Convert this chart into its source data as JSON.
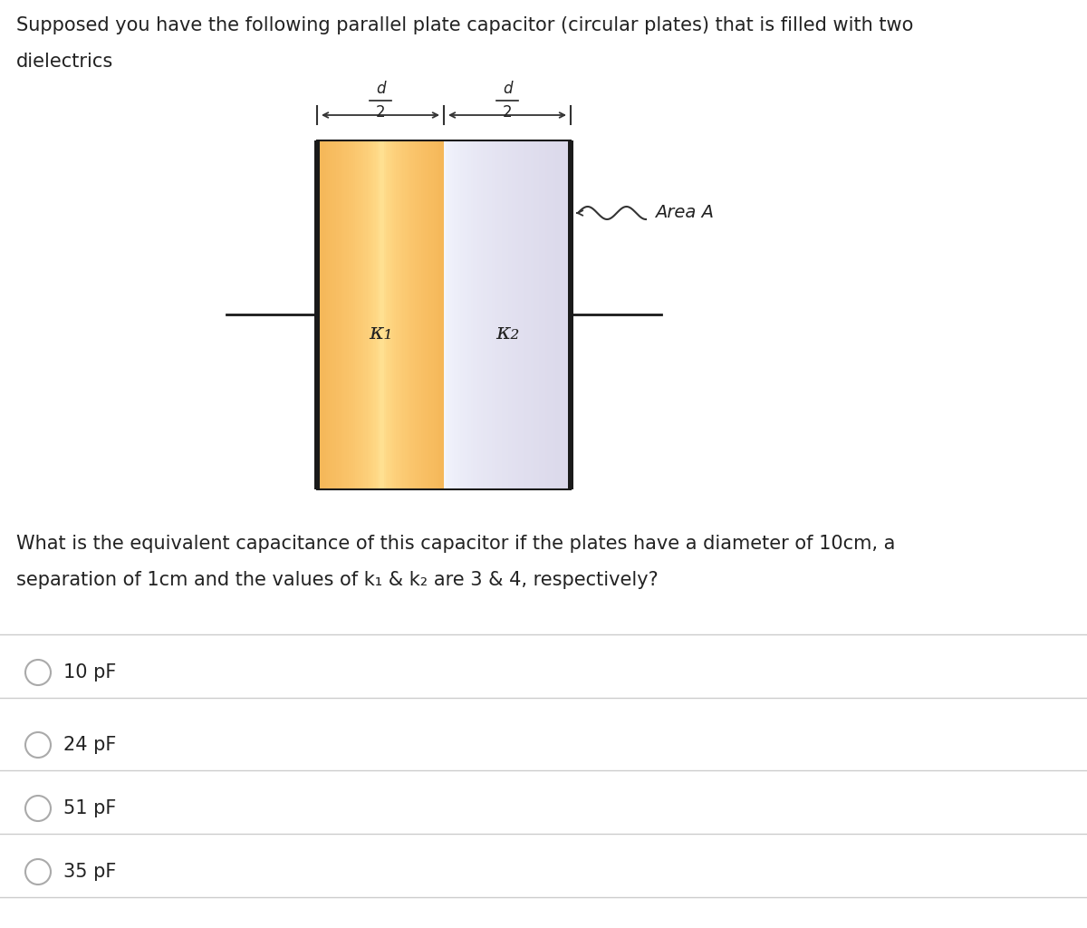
{
  "title_line1": "Supposed you have the following parallel plate capacitor (circular plates) that is filled with two",
  "title_line2": "dielectrics",
  "question_line1": "What is the equivalent capacitance of this capacitor if the plates have a diameter of 10cm, a",
  "question_line2": "separation of 1cm and the values of k₁ & k₂ are 3 & 4, respectively?",
  "options": [
    "10 pF",
    "24 pF",
    "51 pF",
    "35 pF"
  ],
  "k1_label": "κ₁",
  "k2_label": "κ₂",
  "area_label": "Area A",
  "dielectric1_color_dark": "#f0b050",
  "dielectric1_color_light": "#fde8b8",
  "dielectric2_color_dark": "#9aa8c8",
  "dielectric2_color_light": "#e8ecf8",
  "plate_color": "#1a1a1a",
  "bg_color": "#ffffff",
  "text_color": "#222222",
  "sep_color": "#cccccc",
  "radio_color": "#aaaaaa",
  "arrow_color": "#333333"
}
